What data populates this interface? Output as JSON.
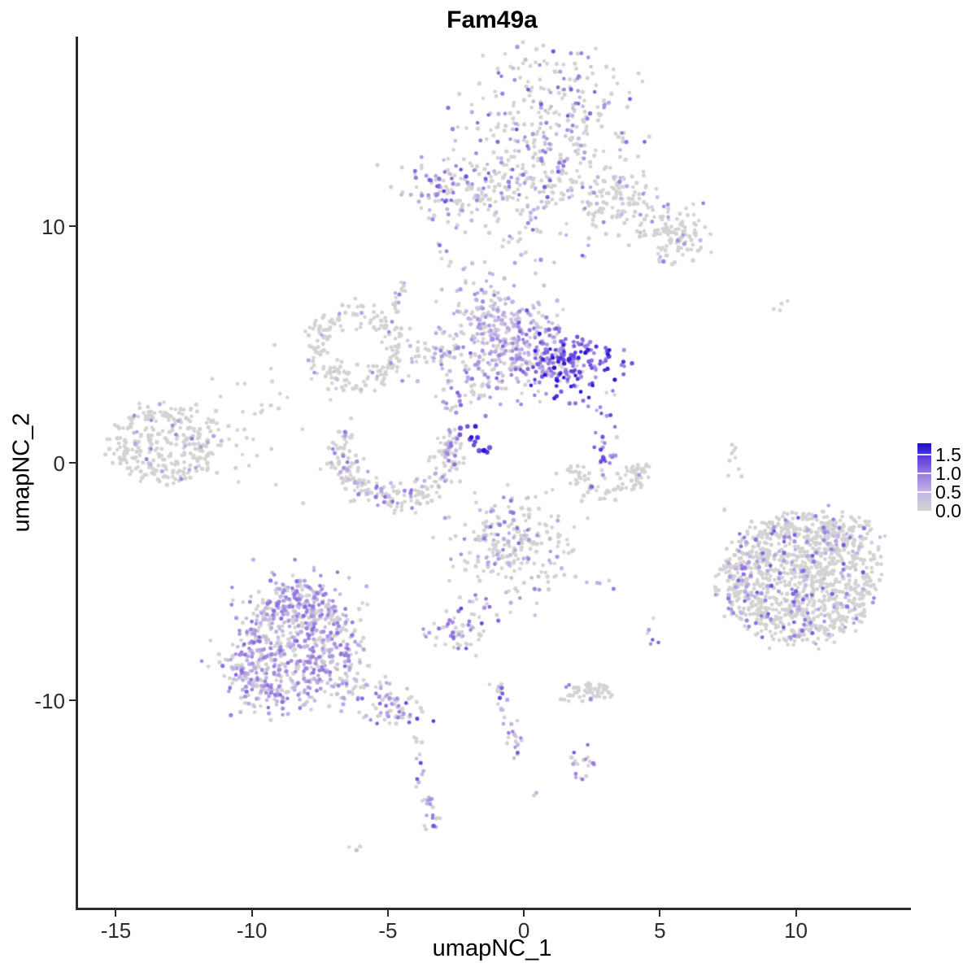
{
  "chart_data": {
    "type": "scatter",
    "title": "Fam49a",
    "xlabel": "umapNC_1",
    "ylabel": "umapNC_2",
    "xlim": [
      -16.42,
      14.08
    ],
    "ylim": [
      -18.78,
      17.98
    ],
    "x_ticks": [
      -15,
      -10,
      -5,
      0,
      5,
      10
    ],
    "y_ticks": [
      10,
      0,
      -10
    ],
    "grid": false,
    "point_radius": 2.4,
    "legend": {
      "position": "right",
      "tick_labels": [
        "1.5",
        "1.0",
        "0.5",
        "0.0"
      ],
      "tick_values": [
        1.5,
        1.0,
        0.5,
        0.0
      ],
      "max_value": 1.8
    },
    "colorscale": {
      "low": "#d3d3d3",
      "high": "#1c0ad6",
      "stops": [
        {
          "pos": 0.0,
          "color": "#d3d3d3"
        },
        {
          "pos": 0.28,
          "color": "#c2b5e6"
        },
        {
          "pos": 0.55,
          "color": "#9678e0"
        },
        {
          "pos": 0.8,
          "color": "#5a3bdc"
        },
        {
          "pos": 1.0,
          "color": "#1c0ad6"
        }
      ]
    },
    "clusters": [
      {
        "name": "top-main",
        "shape": "gauss",
        "cx": 1.09,
        "cy": 13.5,
        "sx": 1.55,
        "sy": 2.2,
        "n": 420,
        "frac": 0.32,
        "lo": 0.3,
        "hi": 1.25
      },
      {
        "name": "top-left",
        "shape": "gauss",
        "cx": -1.96,
        "cy": 11.6,
        "sx": 1.45,
        "sy": 0.8,
        "n": 140,
        "frac": 0.27,
        "lo": 0.3,
        "hi": 1.0
      },
      {
        "name": "top-left-hot",
        "shape": "gauss",
        "cx": -2.95,
        "cy": 11.7,
        "sx": 0.42,
        "sy": 0.45,
        "n": 24,
        "frac": 0.85,
        "lo": 0.7,
        "hi": 1.45
      },
      {
        "name": "top-right-arm",
        "shape": "strand",
        "pts": [
          [
            2.59,
            11.8
          ],
          [
            4.4,
            10.3
          ],
          [
            6.18,
            9.4
          ]
        ],
        "w": 0.55,
        "n": 150,
        "frac": 0.13,
        "lo": 0.3,
        "hi": 0.95
      },
      {
        "name": "arm-end-blob",
        "shape": "gauss",
        "cx": 5.73,
        "cy": 9.58,
        "sx": 0.65,
        "sy": 0.55,
        "n": 55,
        "frac": 0.16,
        "lo": 0.4,
        "hi": 1.0
      },
      {
        "name": "neck-top",
        "shape": "strand",
        "pts": [
          [
            0.34,
            10.8
          ],
          [
            -0.1,
            8.2
          ]
        ],
        "w": 0.3,
        "n": 14,
        "frac": 0.25,
        "lo": 0.3,
        "hi": 0.9
      },
      {
        "name": "pair-top-mid",
        "shape": "strand",
        "pts": [
          [
            -3.0,
            9.33
          ],
          [
            -2.86,
            8.27
          ]
        ],
        "w": 0.12,
        "n": 7,
        "frac": 0.5,
        "lo": 0.5,
        "hi": 1.1
      },
      {
        "name": "upper-strand",
        "shape": "strand",
        "pts": [
          [
            -4.44,
            7.69
          ],
          [
            -4.89,
            5.97
          ]
        ],
        "w": 0.15,
        "n": 18,
        "frac": 0.35,
        "lo": 0.4,
        "hi": 1.05
      },
      {
        "name": "ring-left",
        "shape": "ring",
        "cx": -6.09,
        "cy": 4.84,
        "rx": 1.55,
        "ry": 1.35,
        "thick": 0.6,
        "n": 200,
        "frac": 0.07,
        "lo": 0.3,
        "hi": 0.9
      },
      {
        "name": "bridge",
        "shape": "strand",
        "pts": [
          [
            -4.29,
            4.26
          ],
          [
            -3.3,
            4.5
          ],
          [
            -2.35,
            4.77
          ]
        ],
        "w": 0.35,
        "n": 45,
        "frac": 0.3,
        "lo": 0.35,
        "hi": 1.05
      },
      {
        "name": "center-left-lobe",
        "shape": "gauss",
        "cx": -1.15,
        "cy": 5.8,
        "sx": 0.95,
        "sy": 1.05,
        "n": 210,
        "frac": 0.72,
        "lo": 0.25,
        "hi": 0.85
      },
      {
        "name": "center-top-strand",
        "shape": "strand",
        "pts": [
          [
            -1.2,
            7.3
          ],
          [
            -1.35,
            6.3
          ]
        ],
        "w": 0.2,
        "n": 10,
        "frac": 0.4,
        "lo": 0.3,
        "hi": 0.9
      },
      {
        "name": "center-mid",
        "shape": "gauss",
        "cx": -0.1,
        "cy": 4.6,
        "sx": 1.05,
        "sy": 0.85,
        "n": 190,
        "frac": 0.6,
        "lo": 0.4,
        "hi": 1.25
      },
      {
        "name": "center-right-dense",
        "shape": "gauss",
        "cx": 1.6,
        "cy": 4.26,
        "sx": 0.95,
        "sy": 0.7,
        "n": 175,
        "frac": 0.87,
        "lo": 0.7,
        "hi": 1.75
      },
      {
        "name": "south-fringe",
        "shape": "gauss",
        "cx": -1.6,
        "cy": 2.9,
        "sx": 0.5,
        "sy": 0.4,
        "n": 18,
        "frac": 0.5,
        "lo": 0.4,
        "hi": 1.1
      },
      {
        "name": "mini-above-streak",
        "shape": "gauss",
        "cx": -2.5,
        "cy": 2.54,
        "sx": 0.5,
        "sy": 0.4,
        "n": 22,
        "frac": 0.55,
        "lo": 0.5,
        "hi": 1.3
      },
      {
        "name": "dark-streak",
        "shape": "strand",
        "pts": [
          [
            -2.32,
            1.54
          ],
          [
            -1.3,
            0.45
          ]
        ],
        "w": 0.16,
        "n": 13,
        "frac": 0.95,
        "lo": 1.2,
        "hi": 1.75,
        "r": 2.9
      },
      {
        "name": "dot-right-of-center",
        "shape": "gauss",
        "cx": 2.41,
        "cy": 2.33,
        "sx": 0.15,
        "sy": 0.12,
        "n": 2,
        "frac": 1.0,
        "lo": 0.5,
        "hi": 0.9
      },
      {
        "name": "left-cluster",
        "shape": "disk",
        "cx": -13.26,
        "cy": 0.82,
        "rx": 2.0,
        "ry": 1.7,
        "n": 300,
        "frac": 0.085,
        "lo": 0.45,
        "hi": 1.0
      },
      {
        "name": "left-sparse",
        "shape": "gauss",
        "cx": -10.57,
        "cy": 1.0,
        "sx": 1.25,
        "sy": 1.2,
        "n": 34,
        "frac": 0.04,
        "lo": 0.4,
        "hi": 0.8
      },
      {
        "name": "u-crescent",
        "shape": "arc",
        "cx": -4.68,
        "cy": 0.5,
        "rx": 2.0,
        "ry": 2.0,
        "a1": 155,
        "a2": 385,
        "thick": 0.6,
        "n": 250,
        "frac": 0.3,
        "lo": 0.3,
        "hi": 1.1
      },
      {
        "name": "strip-right",
        "shape": "gauss",
        "cx": 3.04,
        "cy": 0.58,
        "sx": 0.22,
        "sy": 0.85,
        "n": 28,
        "frac": 0.85,
        "lo": 0.6,
        "hi": 1.45
      },
      {
        "name": "crescent-right",
        "shape": "arc",
        "cx": 2.95,
        "cy": -0.2,
        "rx": 1.35,
        "ry": 0.95,
        "a1": 170,
        "a2": 370,
        "thick": 0.5,
        "n": 85,
        "frac": 0.07,
        "lo": 0.4,
        "hi": 1.2
      },
      {
        "name": "right-mini-strand",
        "shape": "strand",
        "pts": [
          [
            7.58,
            0.82
          ],
          [
            7.82,
            -0.79
          ]
        ],
        "w": 0.15,
        "n": 9,
        "frac": 0.0,
        "lo": 0,
        "hi": 0
      },
      {
        "name": "right-mini-dot",
        "shape": "gauss",
        "cx": 7.4,
        "cy": -1.9,
        "sx": 0.1,
        "sy": 0.1,
        "n": 2,
        "frac": 0,
        "lo": 0,
        "hi": 0
      },
      {
        "name": "dots-upper-right",
        "shape": "gauss",
        "cx": 9.2,
        "cy": 6.7,
        "sx": 0.3,
        "sy": 0.3,
        "n": 4,
        "frac": 0,
        "lo": 0,
        "hi": 0
      },
      {
        "name": "bottom-mid",
        "shape": "gauss",
        "cx": -0.34,
        "cy": -3.67,
        "sx": 1.2,
        "sy": 1.1,
        "n": 195,
        "frac": 0.2,
        "lo": 0.3,
        "hi": 1.0
      },
      {
        "name": "bottom-mid-left-hot",
        "shape": "gauss",
        "cx": -1.06,
        "cy": -3.3,
        "sx": 0.5,
        "sy": 0.75,
        "n": 40,
        "frac": 0.55,
        "lo": 0.4,
        "hi": 1.15
      },
      {
        "name": "bm-tail",
        "shape": "strand",
        "pts": [
          [
            -1.54,
            -5.18
          ],
          [
            -2.05,
            -7.76
          ]
        ],
        "w": 0.18,
        "n": 15,
        "frac": 0.5,
        "lo": 0.5,
        "hi": 1.2
      },
      {
        "name": "dense-small",
        "shape": "gauss",
        "cx": -2.44,
        "cy": -7.07,
        "sx": 0.6,
        "sy": 0.48,
        "n": 48,
        "frac": 0.55,
        "lo": 0.6,
        "hi": 1.45
      },
      {
        "name": "bottom-left-main",
        "shape": "disk",
        "cx": -8.24,
        "cy": -7.93,
        "rx": 2.3,
        "ry": 2.4,
        "n": 520,
        "frac": 0.62,
        "lo": 0.3,
        "hi": 1.1
      },
      {
        "name": "bottom-left-top",
        "shape": "gauss",
        "cx": -8.12,
        "cy": -5.87,
        "sx": 1.05,
        "sy": 0.72,
        "n": 150,
        "frac": 0.6,
        "lo": 0.3,
        "hi": 1.1
      },
      {
        "name": "bottom-left-west",
        "shape": "gauss",
        "cx": -9.98,
        "cy": -8.96,
        "sx": 0.75,
        "sy": 1.0,
        "n": 120,
        "frac": 0.66,
        "lo": 0.3,
        "hi": 1.1
      },
      {
        "name": "bl-tail",
        "shape": "strand",
        "pts": [
          [
            -6.38,
            -9.47
          ],
          [
            -5.2,
            -10.0
          ],
          [
            -4.14,
            -10.68
          ]
        ],
        "w": 0.45,
        "n": 70,
        "frac": 0.45,
        "lo": 0.3,
        "hi": 1.2
      },
      {
        "name": "bl-tail-end-hot",
        "shape": "gauss",
        "cx": -4.45,
        "cy": -10.4,
        "sx": 0.45,
        "sy": 0.35,
        "n": 18,
        "frac": 0.7,
        "lo": 0.6,
        "hi": 1.45
      },
      {
        "name": "tail-down",
        "shape": "strand",
        "pts": [
          [
            -3.93,
            -11.36
          ],
          [
            -3.9,
            -12.56
          ]
        ],
        "w": 0.12,
        "n": 6,
        "frac": 0.3,
        "lo": 0.4,
        "hi": 0.9
      },
      {
        "name": "bottom-strand",
        "shape": "strand",
        "pts": [
          [
            -3.95,
            -12.56
          ],
          [
            -3.7,
            -13.94
          ],
          [
            -3.19,
            -14.8
          ],
          [
            -3.46,
            -15.55
          ]
        ],
        "w": 0.16,
        "n": 28,
        "frac": 0.55,
        "lo": 0.4,
        "hi": 1.35
      },
      {
        "name": "bottom-dot-pair",
        "shape": "gauss",
        "cx": -6.12,
        "cy": -16.27,
        "sx": 0.18,
        "sy": 0.12,
        "n": 3,
        "frac": 0.65,
        "lo": 0.3,
        "hi": 0.7
      },
      {
        "name": "mid-strand-s",
        "shape": "strand",
        "pts": [
          [
            -1.09,
            -9.23
          ],
          [
            -0.85,
            -10.06
          ],
          [
            -0.46,
            -11.02
          ],
          [
            -0.22,
            -11.88
          ],
          [
            -0.4,
            -12.5
          ]
        ],
        "w": 0.15,
        "n": 32,
        "frac": 0.5,
        "lo": 0.4,
        "hi": 1.35
      },
      {
        "name": "grey-blob-br",
        "shape": "disk",
        "cx": 2.23,
        "cy": -9.71,
        "rx": 0.95,
        "ry": 0.45,
        "n": 55,
        "frac": 0.04,
        "lo": 0.4,
        "hi": 1.0
      },
      {
        "name": "small-br",
        "shape": "gauss",
        "cx": 2.17,
        "cy": -12.77,
        "sx": 0.5,
        "sy": 0.45,
        "n": 18,
        "frac": 0.5,
        "lo": 0.6,
        "hi": 1.3
      },
      {
        "name": "tiny-dot",
        "shape": "gauss",
        "cx": 0.46,
        "cy": -14.0,
        "sx": 0.12,
        "sy": 0.1,
        "n": 2,
        "frac": 0.5,
        "lo": 0.4,
        "hi": 0.8
      },
      {
        "name": "pair-right",
        "shape": "strand",
        "pts": [
          [
            4.74,
            -6.45
          ],
          [
            4.89,
            -7.86
          ]
        ],
        "w": 0.12,
        "n": 6,
        "frac": 0.6,
        "lo": 0.6,
        "hi": 1.25
      },
      {
        "name": "dots-mid-right",
        "shape": "gauss",
        "cx": 3.05,
        "cy": -5.1,
        "sx": 0.2,
        "sy": 0.3,
        "n": 4,
        "frac": 0.7,
        "lo": 0.5,
        "hi": 1.1
      },
      {
        "name": "right-cluster",
        "shape": "disk",
        "cx": 10.12,
        "cy": -4.91,
        "rx": 2.9,
        "ry": 2.75,
        "n": 1050,
        "frac": 0.115,
        "lo": 0.4,
        "hi": 1.25
      },
      {
        "name": "right-left-edge-hot",
        "shape": "gauss",
        "cx": 8.12,
        "cy": -5.0,
        "sx": 0.45,
        "sy": 0.85,
        "n": 55,
        "frac": 0.5,
        "lo": 0.4,
        "hi": 1.1
      },
      {
        "name": "right-ne-ext",
        "shape": "gauss",
        "cx": 11.71,
        "cy": -2.95,
        "sx": 0.8,
        "sy": 0.5,
        "n": 90,
        "frac": 0.1,
        "lo": 0.4,
        "hi": 1.0
      },
      {
        "name": "sparse-mid-left",
        "shape": "gauss",
        "cx": -9.1,
        "cy": 3.4,
        "sx": 1.1,
        "sy": 0.8,
        "n": 12,
        "frac": 0.05,
        "lo": 0.4,
        "hi": 0.8
      }
    ]
  }
}
